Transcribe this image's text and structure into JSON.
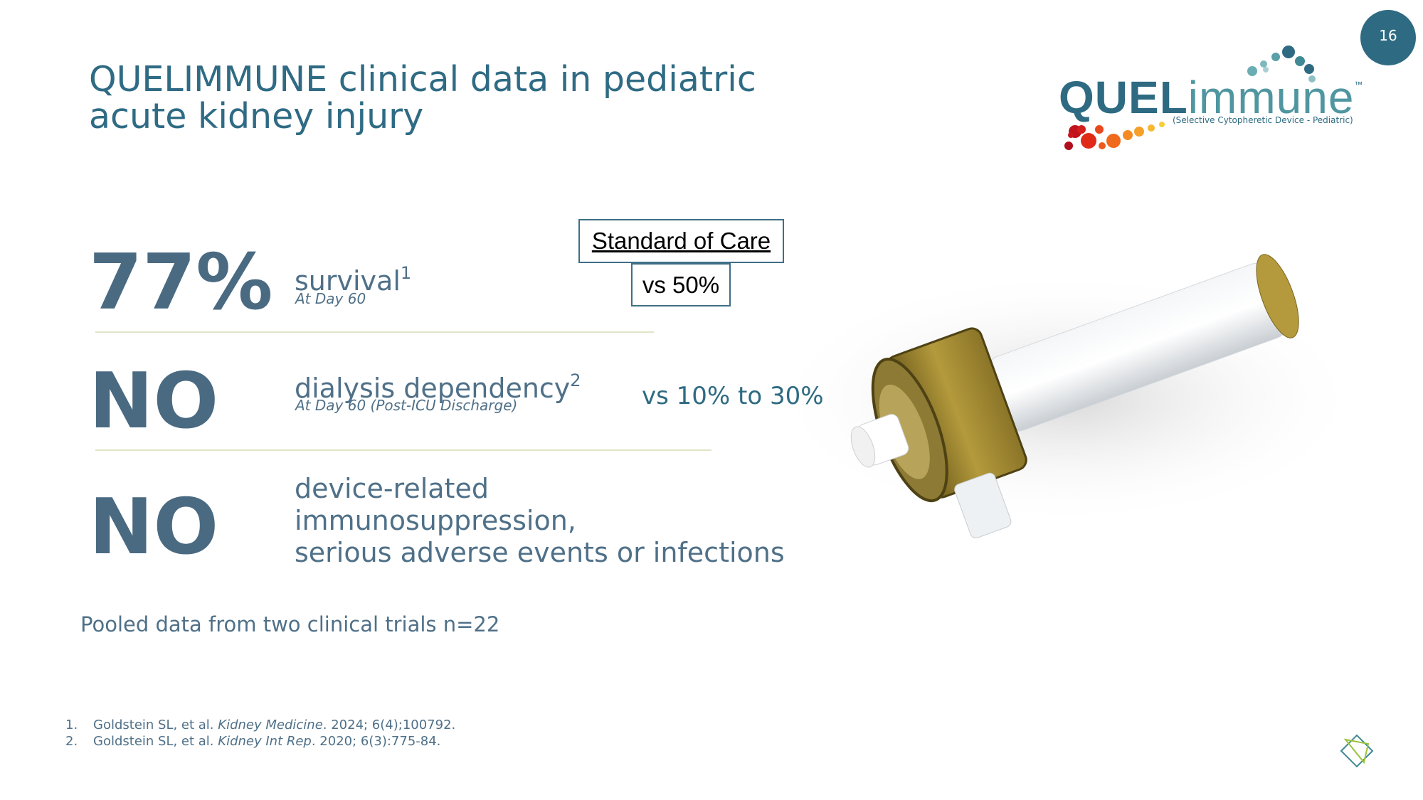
{
  "page_number": "16",
  "title": {
    "lines": [
      "QUELIMMUNE clinical data in pediatric",
      "acute kidney injury"
    ]
  },
  "logo": {
    "wordmark_bold": "QUEL",
    "wordmark_light": "immune",
    "trademark": "™",
    "tagline": "(Selective Cytopheretic Device - Pediatric)"
  },
  "comparison_header": "Standard of Care",
  "stats": [
    {
      "figure": "77%",
      "label": "survival",
      "footnote": "1",
      "detail": "At Day 60",
      "comparison": "vs 50%"
    },
    {
      "figure": "NO",
      "label": "dialysis dependency",
      "footnote": "2",
      "detail": "At Day 60 (Post-ICU Discharge)",
      "comparison": "vs 10% to 30%"
    },
    {
      "figure": "NO",
      "label_lines": [
        "device-related",
        "immunosuppression,",
        "serious adverse events or infections"
      ]
    }
  ],
  "note": "Pooled data from two clinical trials n=22",
  "references": [
    {
      "number": "1.",
      "text": "Goldstein SL, et al. ",
      "journal": "Kidney Medicine",
      "citation": ". 2024; 6(4);100792."
    },
    {
      "number": "2.",
      "text": "Goldstein SL, et al. ",
      "journal": "Kidney Int Rep",
      "citation": ". 2020; 6(3):775-84."
    }
  ]
}
